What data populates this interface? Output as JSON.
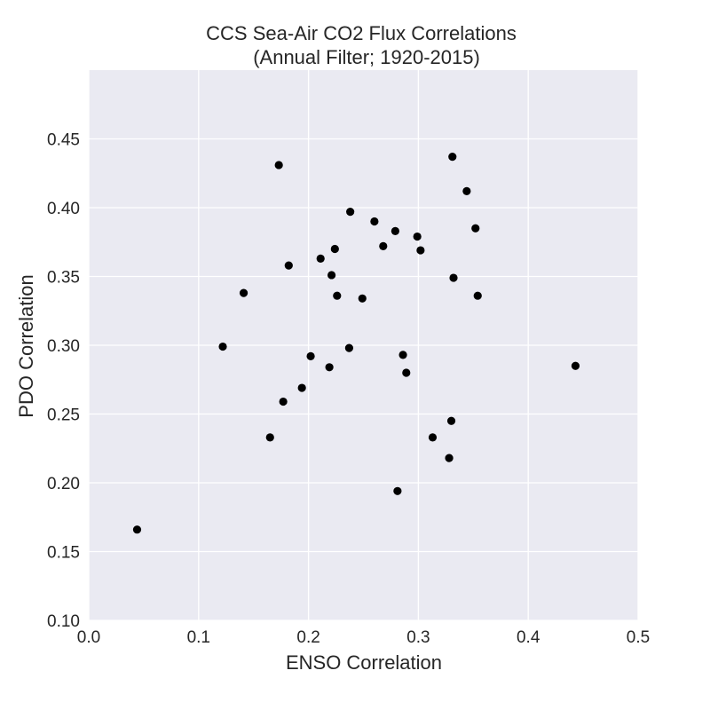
{
  "chart_data": {
    "type": "scatter",
    "title": [
      "CCS Sea-Air CO2 Flux Correlations",
      "(Annual Filter; 1920-2015)"
    ],
    "xlabel": "ENSO Correlation",
    "ylabel": "PDO Correlation",
    "xlim": [
      0.0,
      0.5
    ],
    "ylim": [
      0.1,
      0.5
    ],
    "xticks": [
      "0.0",
      "0.1",
      "0.2",
      "0.3",
      "0.4",
      "0.5"
    ],
    "yticks": [
      "0.10",
      "0.15",
      "0.20",
      "0.25",
      "0.30",
      "0.35",
      "0.40",
      "0.45"
    ],
    "grid": true,
    "background_color": "#EAEAF2",
    "marker_color": "#000000",
    "points": [
      {
        "x": 0.044,
        "y": 0.166
      },
      {
        "x": 0.122,
        "y": 0.299
      },
      {
        "x": 0.141,
        "y": 0.338
      },
      {
        "x": 0.165,
        "y": 0.233
      },
      {
        "x": 0.173,
        "y": 0.431
      },
      {
        "x": 0.177,
        "y": 0.259
      },
      {
        "x": 0.182,
        "y": 0.358
      },
      {
        "x": 0.194,
        "y": 0.269
      },
      {
        "x": 0.202,
        "y": 0.292
      },
      {
        "x": 0.211,
        "y": 0.363
      },
      {
        "x": 0.219,
        "y": 0.284
      },
      {
        "x": 0.221,
        "y": 0.351
      },
      {
        "x": 0.224,
        "y": 0.37
      },
      {
        "x": 0.226,
        "y": 0.336
      },
      {
        "x": 0.237,
        "y": 0.298
      },
      {
        "x": 0.238,
        "y": 0.397
      },
      {
        "x": 0.249,
        "y": 0.334
      },
      {
        "x": 0.26,
        "y": 0.39
      },
      {
        "x": 0.268,
        "y": 0.372
      },
      {
        "x": 0.279,
        "y": 0.383
      },
      {
        "x": 0.281,
        "y": 0.194
      },
      {
        "x": 0.286,
        "y": 0.293
      },
      {
        "x": 0.289,
        "y": 0.28
      },
      {
        "x": 0.299,
        "y": 0.379
      },
      {
        "x": 0.302,
        "y": 0.369
      },
      {
        "x": 0.313,
        "y": 0.233
      },
      {
        "x": 0.328,
        "y": 0.218
      },
      {
        "x": 0.33,
        "y": 0.245
      },
      {
        "x": 0.331,
        "y": 0.437
      },
      {
        "x": 0.332,
        "y": 0.349
      },
      {
        "x": 0.344,
        "y": 0.412
      },
      {
        "x": 0.352,
        "y": 0.385
      },
      {
        "x": 0.354,
        "y": 0.336
      },
      {
        "x": 0.443,
        "y": 0.285
      }
    ]
  }
}
